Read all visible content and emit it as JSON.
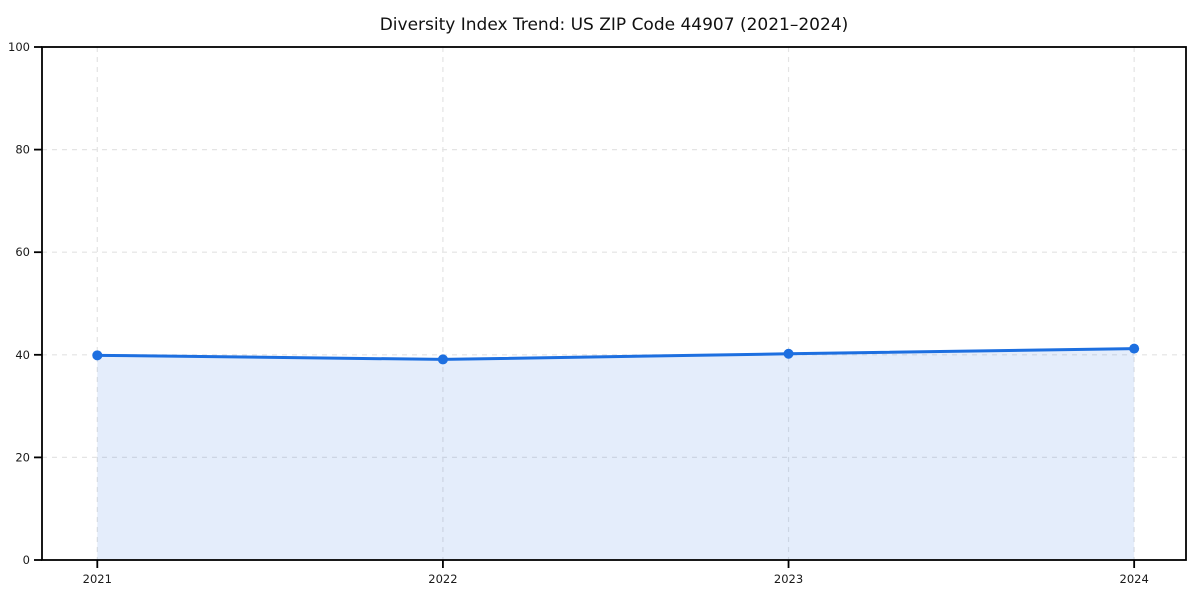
{
  "chart": {
    "title": "Diversity Index Trend: US ZIP Code 44907 (2021–2024)"
  },
  "chart_data": {
    "type": "line",
    "title": "Diversity Index Trend: US ZIP Code 44907 (2021–2024)",
    "xlabel": "",
    "ylabel": "",
    "x": [
      2021,
      2022,
      2023,
      2024
    ],
    "series": [
      {
        "name": "Diversity Index",
        "values": [
          39.9,
          39.1,
          40.2,
          41.2
        ]
      }
    ],
    "xticks": [
      2021,
      2022,
      2023,
      2024
    ],
    "xtick_labels": [
      "2021",
      "2022",
      "2023",
      "2024"
    ],
    "yticks": [
      0,
      20,
      40,
      60,
      80,
      100
    ],
    "ytick_labels": [
      "0",
      "20",
      "40",
      "60",
      "80",
      "100"
    ],
    "xlim": [
      2020.84,
      2024.15
    ],
    "ylim": [
      0,
      100
    ],
    "grid": true,
    "grid_style": "dashed",
    "legend": false,
    "area_fill": true,
    "colors": {
      "line": "#1d6fe0",
      "marker": "#1d6fe0",
      "fill": "#1d6fe0",
      "fill_opacity": 0.12,
      "grid": "#e4e4e4",
      "spine": "#000000",
      "tick_text": "#1a1a1a",
      "plot_background": "#ffffff"
    }
  }
}
